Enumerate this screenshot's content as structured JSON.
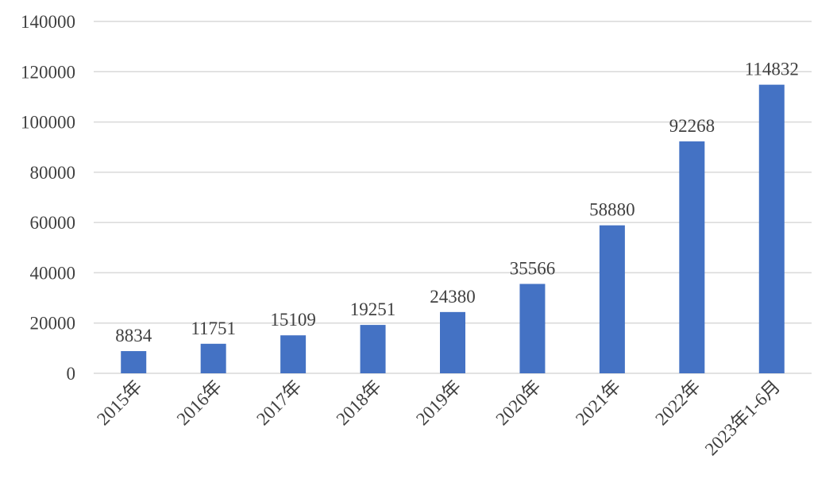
{
  "chart_data": {
    "type": "bar",
    "categories": [
      "2015年",
      "2016年",
      "2017年",
      "2018年",
      "2019年",
      "2020年",
      "2021年",
      "2022年",
      "2023年1-6月"
    ],
    "values": [
      8834,
      11751,
      15109,
      19251,
      24380,
      35566,
      58880,
      92268,
      114832
    ],
    "color": "#4472c4",
    "ylim": [
      0,
      140000
    ],
    "yticks": [
      0,
      20000,
      40000,
      60000,
      80000,
      100000,
      120000,
      140000
    ],
    "grid": true,
    "data_labels": true
  }
}
